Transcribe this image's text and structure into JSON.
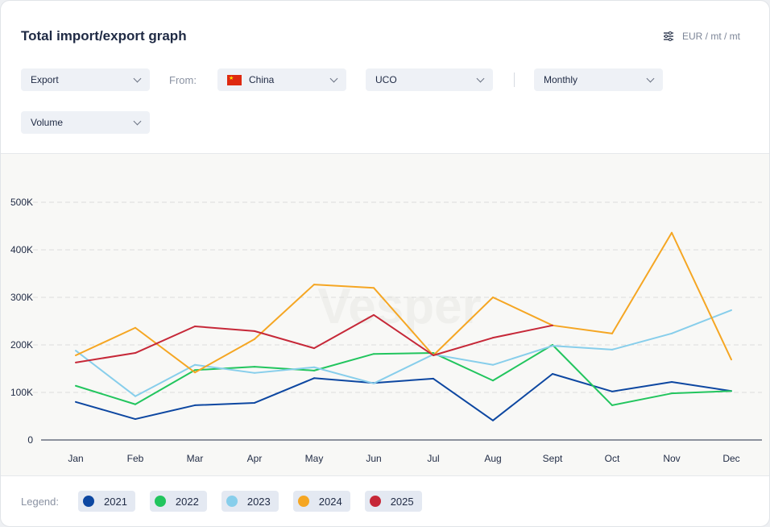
{
  "header": {
    "title": "Total import/export graph",
    "unit_icon": "sliders-icon",
    "unit": "EUR / mt / mt"
  },
  "filters": {
    "direction": "Export",
    "from_label": "From:",
    "country": "China",
    "country_flag": "china-flag",
    "product": "UCO",
    "period": "Monthly",
    "metric": "Volume"
  },
  "watermark": "Vesper",
  "legend": {
    "label": "Legend:"
  },
  "chart_data": {
    "type": "line",
    "categories": [
      "Jan",
      "Feb",
      "Mar",
      "Apr",
      "May",
      "Jun",
      "Jul",
      "Aug",
      "Sept",
      "Oct",
      "Nov",
      "Dec"
    ],
    "yticks": [
      "0",
      "100K",
      "200K",
      "300K",
      "400K",
      "500K"
    ],
    "ylim": [
      0,
      500000
    ],
    "grid": true,
    "legend_placement": "bottom",
    "series": [
      {
        "name": "2021",
        "color": "#0d47a1",
        "values": [
          80000,
          44000,
          73000,
          78000,
          130000,
          120000,
          129000,
          41000,
          139000,
          102000,
          122000,
          103000
        ]
      },
      {
        "name": "2022",
        "color": "#22c55e",
        "values": [
          114000,
          75000,
          147000,
          154000,
          146000,
          181000,
          183000,
          125000,
          200000,
          73000,
          98000,
          103000
        ]
      },
      {
        "name": "2023",
        "color": "#87ceeb",
        "values": [
          188000,
          92000,
          158000,
          141000,
          153000,
          119000,
          180000,
          158000,
          198000,
          190000,
          224000,
          273000
        ]
      },
      {
        "name": "2024",
        "color": "#f5a623",
        "values": [
          178000,
          236000,
          142000,
          212000,
          327000,
          320000,
          178000,
          300000,
          241000,
          224000,
          436000,
          169000
        ]
      },
      {
        "name": "2025",
        "color": "#c62838",
        "values": [
          163000,
          183000,
          239000,
          229000,
          193000,
          263000,
          178000,
          215000,
          241000,
          null,
          null,
          null
        ]
      }
    ]
  }
}
